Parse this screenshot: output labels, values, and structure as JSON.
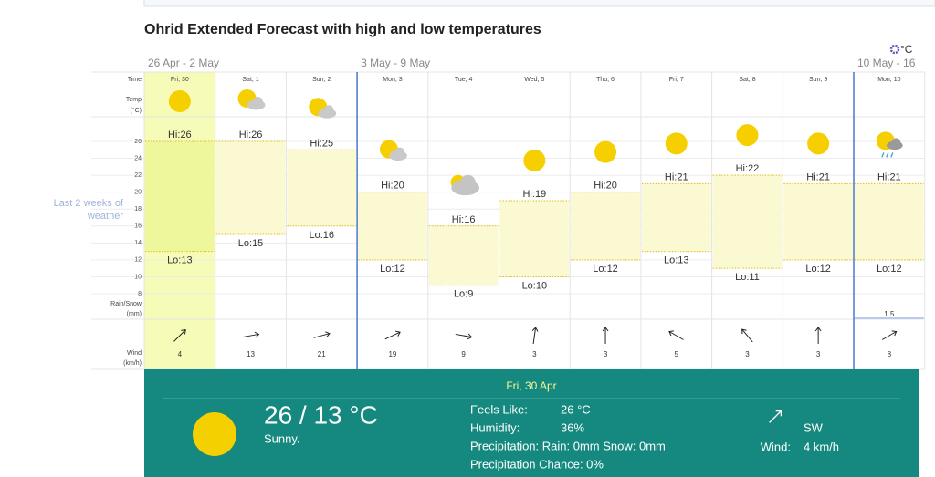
{
  "title": "Ohrid Extended Forecast with high and low temperatures",
  "units_toggle": "°C",
  "weeks": [
    "26 Apr - 2 May",
    "3 May - 9 May",
    "10 May - 16"
  ],
  "row_labels": {
    "time": "Time",
    "temp": [
      "Temp",
      "(°C)"
    ],
    "rain": [
      "Rain/Snow",
      "(mm)"
    ],
    "wind": [
      "Wind",
      "(km/h)"
    ]
  },
  "history_link": [
    "Last 2 weeks of",
    "weather"
  ],
  "temp_ticks": [
    26,
    24,
    22,
    20,
    18,
    16,
    14,
    12,
    10,
    8
  ],
  "hi_prefix": "Hi:",
  "lo_prefix": "Lo:",
  "days": [
    {
      "label": "Fri, 30",
      "hi": 26,
      "lo": 13,
      "wind": 4
    },
    {
      "label": "Sat, 1",
      "hi": 26,
      "lo": 15,
      "wind": 13
    },
    {
      "label": "Sun, 2",
      "hi": 25,
      "lo": 16,
      "wind": 21
    },
    {
      "label": "Mon, 3",
      "hi": 20,
      "lo": 12,
      "wind": 19
    },
    {
      "label": "Tue, 4",
      "hi": 16,
      "lo": 9,
      "wind": 9
    },
    {
      "label": "Wed, 5",
      "hi": 19,
      "lo": 10,
      "wind": 3
    },
    {
      "label": "Thu, 6",
      "hi": 20,
      "lo": 12,
      "wind": 3
    },
    {
      "label": "Fri, 7",
      "hi": 21,
      "lo": 13,
      "wind": 5
    },
    {
      "label": "Sat, 8",
      "hi": 22,
      "lo": 11,
      "wind": 3
    },
    {
      "label": "Sun, 9",
      "hi": 21,
      "lo": 12,
      "wind": 3
    },
    {
      "label": "Mon, 10",
      "hi": 21,
      "lo": 12,
      "wind": 8,
      "rain": 1.5
    }
  ],
  "selected": {
    "date": "Fri, 30 Apr",
    "temps": "26 / 13 °C",
    "summary": "Sunny.",
    "feels_like_label": "Feels Like:",
    "feels_like": "26 °C",
    "humidity_label": "Humidity:",
    "humidity": "36%",
    "precipitation": "Precipitation: Rain: 0mm Snow: 0mm",
    "precipitation_chance": "Precipitation Chance: 0%",
    "wind_dir": "SW",
    "wind_label": "Wind:",
    "wind": "4 km/h"
  }
}
